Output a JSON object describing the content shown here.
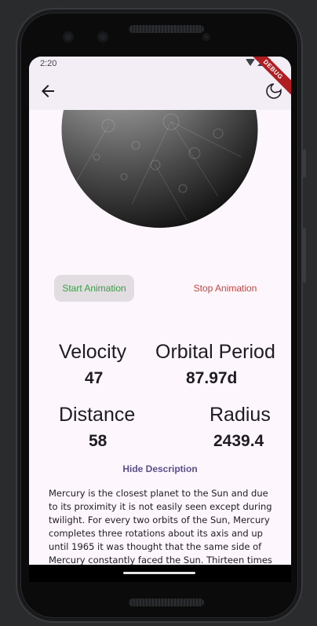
{
  "status_bar": {
    "time": "2:20"
  },
  "debug_banner": "DEBUG",
  "app_bar": {
    "back_icon": "arrow-back-icon",
    "theme_icon": "dark-mode-icon"
  },
  "planet": {
    "image": "mercury-planet-image"
  },
  "controls": {
    "start_label": "Start Animation",
    "stop_label": "Stop Animation"
  },
  "stats": {
    "velocity_label": "Velocity",
    "velocity_value": "47",
    "orbital_period_label": "Orbital Period",
    "orbital_period_value": "87.97d",
    "distance_label": "Distance",
    "distance_value": "58",
    "radius_label": "Radius",
    "radius_value": "2439.4"
  },
  "description": {
    "toggle_label": "Hide Description",
    "text": "Mercury is the closest planet to the Sun and due to its proximity it is not easily seen except during twilight. For every two orbits of the Sun, Mercury completes three rotations about its axis and up until 1965 it was thought that the same side of Mercury constantly faced the Sun. Thirteen times a"
  },
  "colors": {
    "start_text": "#3b9c48",
    "stop_text": "#d1423a",
    "toggle_text": "#5a4e8f",
    "app_bar_bg": "#f3edf6",
    "screen_bg": "#fdf7fd"
  }
}
